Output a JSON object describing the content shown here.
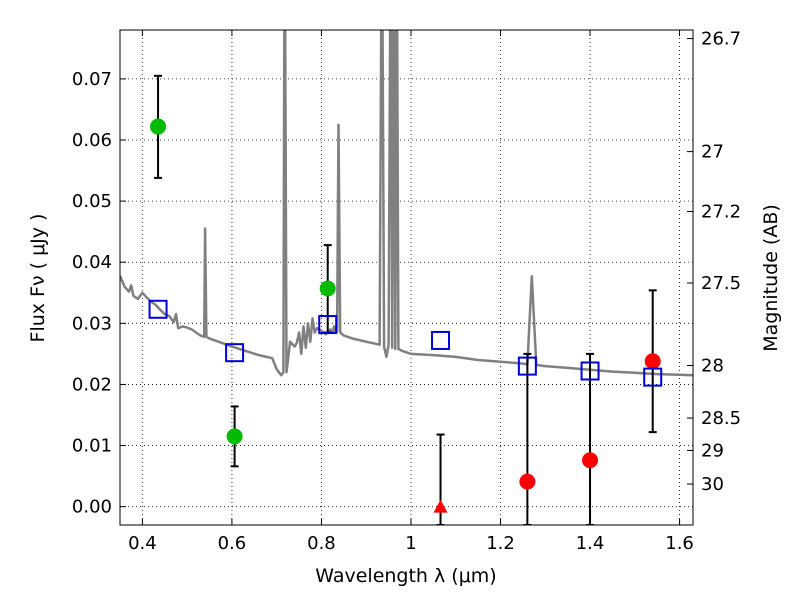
{
  "chart_data": {
    "type": "scatter",
    "xlabel": "Wavelength  λ (μm)",
    "ylabel": "Flux  Fν  ( μJy )",
    "y2label": "Magnitude (AB)",
    "xlim": [
      0.35,
      1.63
    ],
    "ylim": [
      -0.003,
      0.078
    ],
    "grid": true,
    "x_ticks": [
      0.4,
      0.6,
      0.8,
      1.0,
      1.2,
      1.4,
      1.6
    ],
    "x_tick_labels": [
      "0.4",
      "0.6",
      "0.8",
      "1",
      "1.2",
      "1.4",
      "1.6"
    ],
    "y_ticks": [
      0.0,
      0.01,
      0.02,
      0.03,
      0.04,
      0.05,
      0.06,
      0.07
    ],
    "y_tick_labels": [
      "0.00",
      "0.01",
      "0.02",
      "0.03",
      "0.04",
      "0.05",
      "0.06",
      "0.07"
    ],
    "y2_ticks": [
      {
        "label": "26.7",
        "flux": 0.0766
      },
      {
        "label": "27",
        "flux": 0.0581
      },
      {
        "label": "27.2",
        "flux": 0.0483
      },
      {
        "label": "27.5",
        "flux": 0.0366
      },
      {
        "label": "28",
        "flux": 0.0231
      },
      {
        "label": "28.5",
        "flux": 0.0145
      },
      {
        "label": "29",
        "flux": 0.0092
      },
      {
        "label": "30",
        "flux": 0.0037
      }
    ],
    "series": [
      {
        "marker": "circle",
        "color": "#00bb00",
        "points": [
          {
            "x": 0.435,
            "y": 0.0622,
            "err_low": 0.0538,
            "err_high": 0.0705
          },
          {
            "x": 0.606,
            "y": 0.0115,
            "err_low": 0.0066,
            "err_high": 0.0164
          },
          {
            "x": 0.814,
            "y": 0.0357,
            "err_low": 0.0285,
            "err_high": 0.0428
          }
        ]
      },
      {
        "marker": "circle",
        "color": "#ff0000",
        "points": [
          {
            "x": 1.26,
            "y": 0.0041,
            "err_low": -0.003,
            "err_high": 0.025
          },
          {
            "x": 1.4,
            "y": 0.0076,
            "err_low": -0.003,
            "err_high": 0.025
          },
          {
            "x": 1.54,
            "y": 0.0238,
            "err_low": 0.0122,
            "err_high": 0.0354
          }
        ]
      },
      {
        "marker": "triangle",
        "color": "#ff0000",
        "points": [
          {
            "x": 1.066,
            "y": 0.0,
            "err_low": -0.003,
            "err_high": 0.0118
          }
        ]
      },
      {
        "marker": "open-square",
        "color": "#0000dd",
        "points": [
          {
            "x": 0.435,
            "y": 0.0323
          },
          {
            "x": 0.606,
            "y": 0.0252
          },
          {
            "x": 0.814,
            "y": 0.0298
          },
          {
            "x": 1.066,
            "y": 0.0272
          },
          {
            "x": 1.26,
            "y": 0.023
          },
          {
            "x": 1.4,
            "y": 0.0222
          },
          {
            "x": 1.54,
            "y": 0.0212
          }
        ]
      }
    ],
    "model_spectrum": {
      "color": "#808080",
      "points": [
        [
          0.35,
          0.0378
        ],
        [
          0.36,
          0.036
        ],
        [
          0.37,
          0.0352
        ],
        [
          0.375,
          0.0362
        ],
        [
          0.38,
          0.0345
        ],
        [
          0.39,
          0.034
        ],
        [
          0.4,
          0.035
        ],
        [
          0.41,
          0.0342
        ],
        [
          0.42,
          0.0335
        ],
        [
          0.43,
          0.033
        ],
        [
          0.44,
          0.0322
        ],
        [
          0.45,
          0.0315
        ],
        [
          0.46,
          0.0312
        ],
        [
          0.47,
          0.0302
        ],
        [
          0.475,
          0.0315
        ],
        [
          0.48,
          0.0292
        ],
        [
          0.49,
          0.0295
        ],
        [
          0.5,
          0.0293
        ],
        [
          0.51,
          0.029
        ],
        [
          0.52,
          0.0285
        ],
        [
          0.53,
          0.028
        ],
        [
          0.538,
          0.0278
        ],
        [
          0.54,
          0.0455
        ],
        [
          0.543,
          0.0278
        ],
        [
          0.55,
          0.0275
        ],
        [
          0.57,
          0.027
        ],
        [
          0.6,
          0.0262
        ],
        [
          0.63,
          0.0255
        ],
        [
          0.66,
          0.0248
        ],
        [
          0.69,
          0.0243
        ],
        [
          0.7,
          0.0225
        ],
        [
          0.71,
          0.0215
        ],
        [
          0.715,
          0.022
        ],
        [
          0.718,
          0.1
        ],
        [
          0.722,
          0.022
        ],
        [
          0.73,
          0.027
        ],
        [
          0.74,
          0.0262
        ],
        [
          0.745,
          0.0268
        ],
        [
          0.75,
          0.0285
        ],
        [
          0.755,
          0.025
        ],
        [
          0.76,
          0.0295
        ],
        [
          0.765,
          0.026
        ],
        [
          0.77,
          0.03
        ],
        [
          0.775,
          0.027
        ],
        [
          0.78,
          0.0308
        ],
        [
          0.785,
          0.0285
        ],
        [
          0.79,
          0.0292
        ],
        [
          0.8,
          0.0288
        ],
        [
          0.81,
          0.0282
        ],
        [
          0.82,
          0.029
        ],
        [
          0.825,
          0.0285
        ],
        [
          0.828,
          0.0295
        ],
        [
          0.831,
          0.0285
        ],
        [
          0.835,
          0.0287
        ],
        [
          0.838,
          0.0625
        ],
        [
          0.842,
          0.0285
        ],
        [
          0.85,
          0.028
        ],
        [
          0.87,
          0.0275
        ],
        [
          0.9,
          0.027
        ],
        [
          0.93,
          0.0265
        ],
        [
          0.935,
          0.1
        ],
        [
          0.94,
          0.0262
        ],
        [
          0.945,
          0.0245
        ],
        [
          0.95,
          0.0265
        ],
        [
          0.955,
          0.1
        ],
        [
          0.958,
          0.026
        ],
        [
          0.962,
          0.1
        ],
        [
          0.965,
          0.0258
        ],
        [
          0.968,
          0.1
        ],
        [
          0.972,
          0.0258
        ],
        [
          0.98,
          0.0255
        ],
        [
          1.0,
          0.025
        ],
        [
          1.05,
          0.0248
        ],
        [
          1.1,
          0.0245
        ],
        [
          1.15,
          0.024
        ],
        [
          1.2,
          0.0237
        ],
        [
          1.24,
          0.0235
        ],
        [
          1.26,
          0.0233
        ],
        [
          1.27,
          0.0377
        ],
        [
          1.28,
          0.0232
        ],
        [
          1.3,
          0.023
        ],
        [
          1.35,
          0.0227
        ],
        [
          1.4,
          0.0224
        ],
        [
          1.45,
          0.0221
        ],
        [
          1.5,
          0.0219
        ],
        [
          1.55,
          0.0217
        ],
        [
          1.6,
          0.0216
        ],
        [
          1.63,
          0.0215
        ]
      ]
    }
  }
}
